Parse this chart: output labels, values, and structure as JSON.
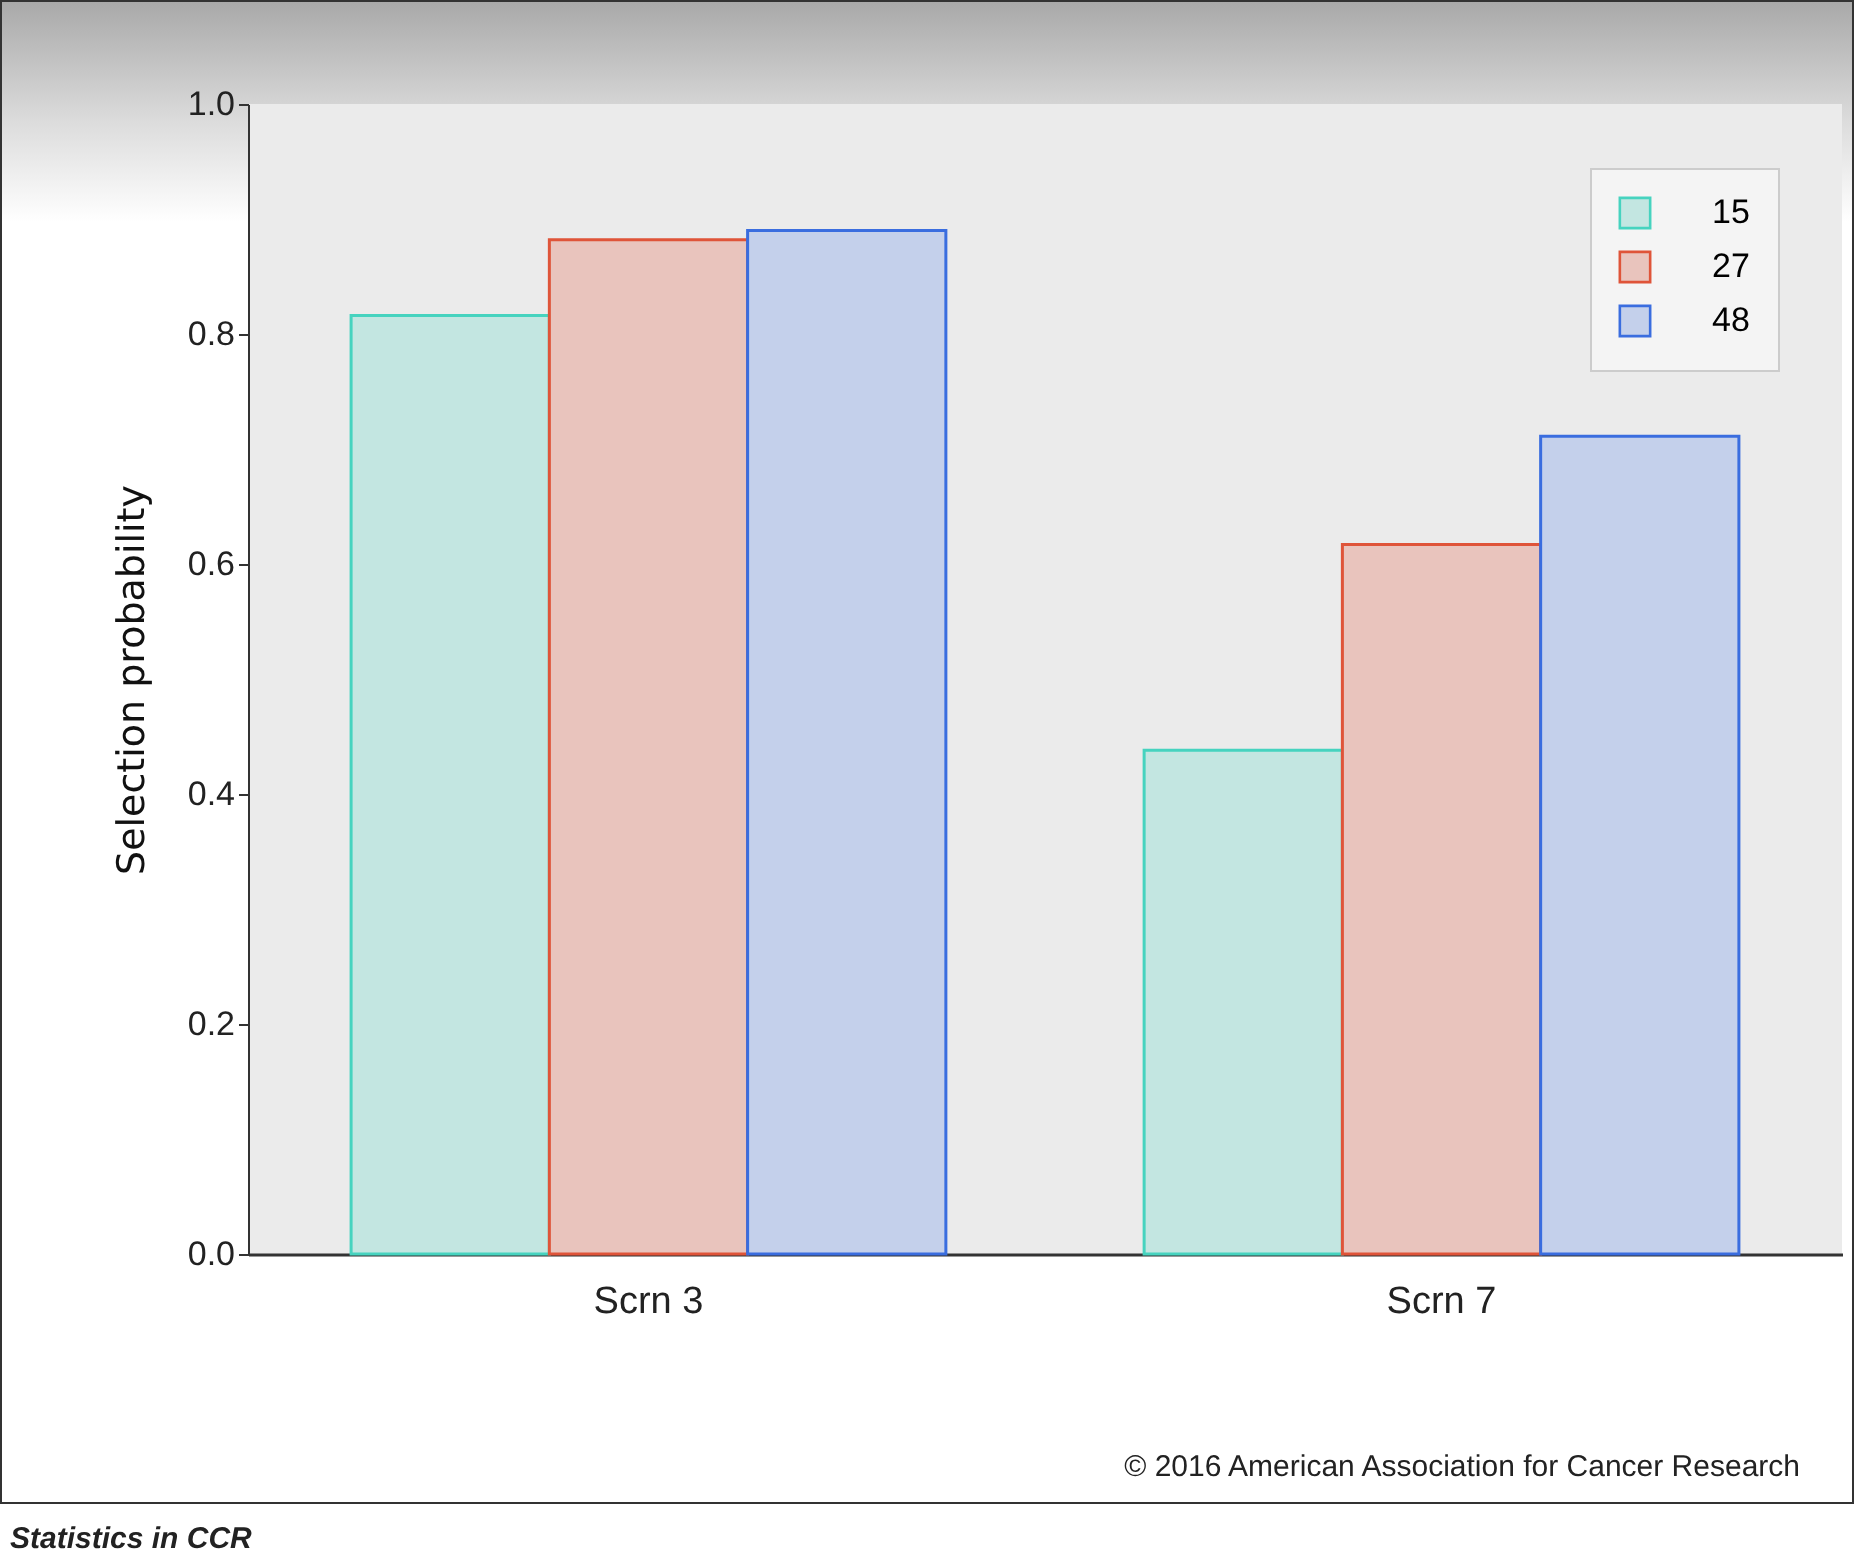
{
  "chart_data": {
    "type": "bar",
    "ylabel": "Selection probability",
    "categories": [
      "Scrn 3",
      "Scrn 7"
    ],
    "series": [
      {
        "name": "15",
        "color": "#c3e6e1",
        "values": [
          0.816,
          0.438
        ]
      },
      {
        "name": "27",
        "color": "#e9c4bd",
        "values": [
          0.882,
          0.617
        ]
      },
      {
        "name": "48",
        "color": "#c4d0eb",
        "values": [
          0.89,
          0.711
        ]
      }
    ],
    "ylim": [
      0,
      1
    ],
    "yticks": [
      {
        "value": 0,
        "label": "0.0"
      },
      {
        "value": 0.2,
        "label": "0.2"
      },
      {
        "value": 0.4,
        "label": "0.4"
      },
      {
        "value": 0.6,
        "label": "0.6"
      },
      {
        "value": 0.8,
        "label": "0.8"
      },
      {
        "value": 1,
        "label": "1.0"
      }
    ],
    "grid": false,
    "legend": "top right",
    "annotations": [
      "© 2016 American Association for Cancer Research",
      "Statistics in CCR"
    ]
  }
}
